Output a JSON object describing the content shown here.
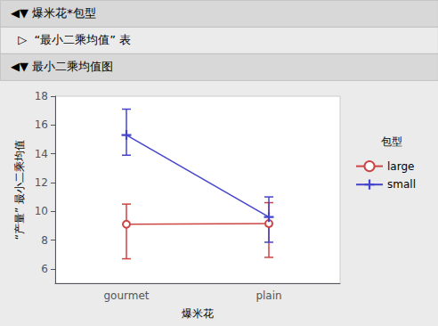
{
  "chart_data": {
    "type": "line",
    "title": "◀▼ 爆米花*包型",
    "subtitle": "  ▷  “最小二乘均值” 表",
    "annotations": [
      "◀▼ 最小二乘均值图"
    ],
    "legend_title": "包型",
    "xlabel": "爆米花",
    "ylabel": "“产量” 最小二乘均值",
    "categories": [
      "gourmet",
      "plain"
    ],
    "ylim": [
      5,
      18
    ],
    "yticks": [
      6,
      8,
      10,
      12,
      14,
      16,
      18
    ],
    "grid": false,
    "legend": "right",
    "series": [
      {
        "name": "large",
        "color": "#cc4444",
        "marker": "circle",
        "line_style": "solid",
        "values": [
          9.1,
          9.15
        ],
        "ci_lower": [
          6.7,
          6.8
        ],
        "ci_upper": [
          10.5,
          10.6
        ]
      },
      {
        "name": "small",
        "color": "#4444cc",
        "marker": "plus",
        "line_style": "solid",
        "values": [
          15.3,
          9.6
        ],
        "ci_lower": [
          13.9,
          7.85
        ],
        "ci_upper": [
          17.1,
          11.0
        ]
      }
    ]
  }
}
